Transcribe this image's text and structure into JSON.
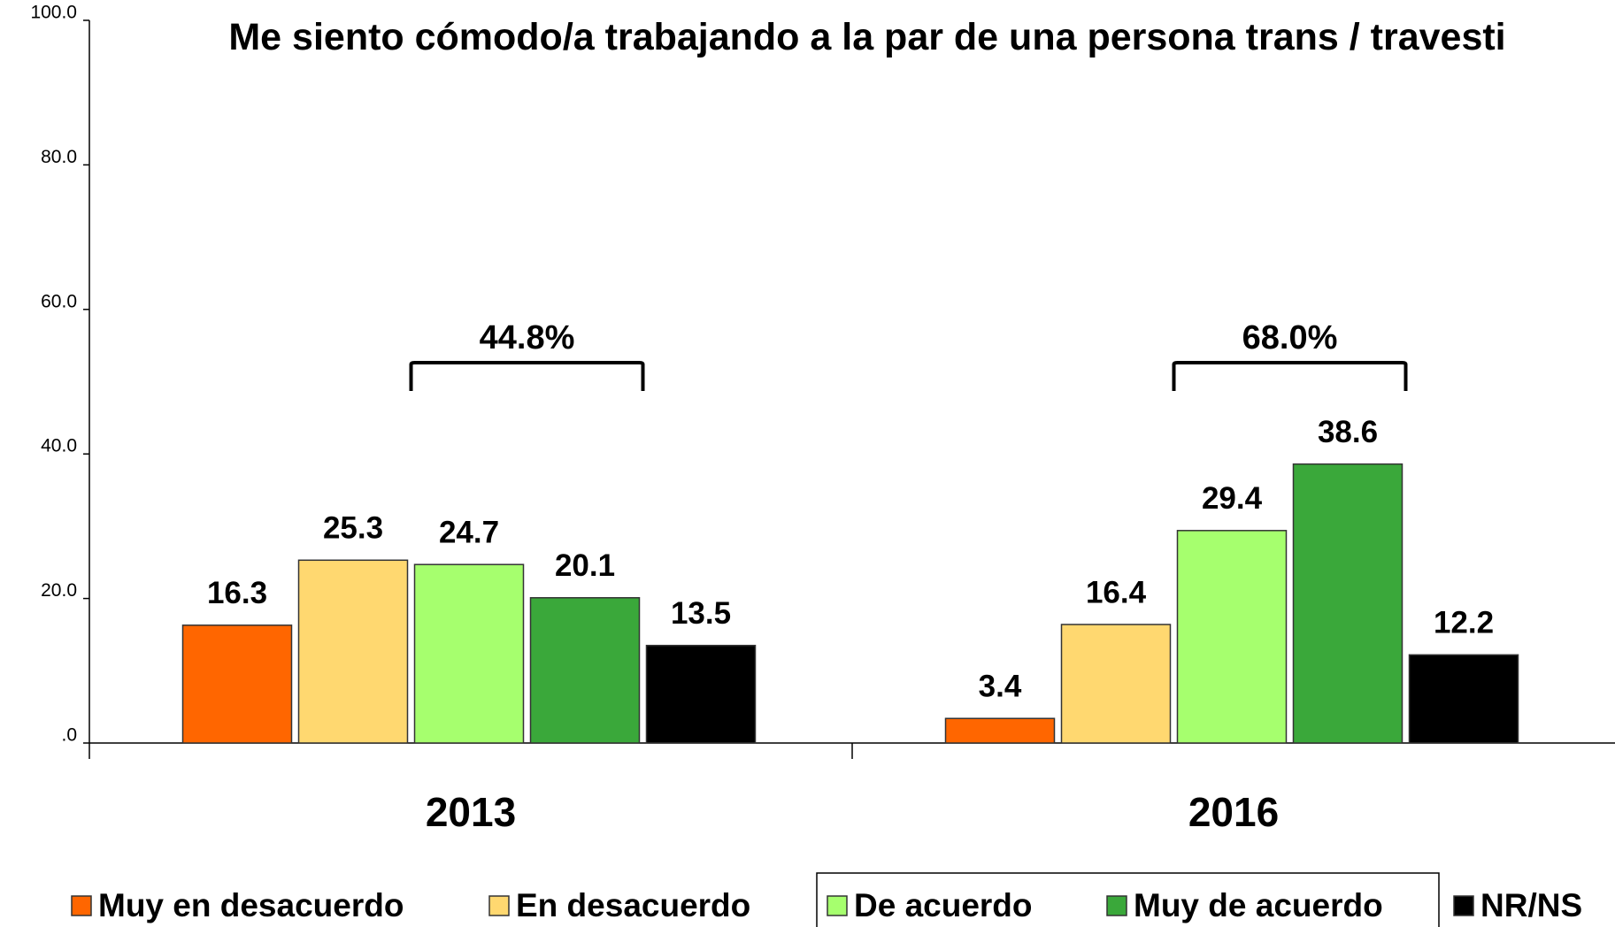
{
  "chart_data": {
    "type": "bar",
    "title": "Me siento cómodo/a trabajando a la par de una persona  trans / travesti",
    "categories": [
      "2013",
      "2016"
    ],
    "series": [
      {
        "name": "Muy en desacuerdo",
        "color": "#ff6600",
        "values": [
          16.3,
          3.4
        ]
      },
      {
        "name": "En desacuerdo",
        "color": "#ffd870",
        "values": [
          25.3,
          16.4
        ]
      },
      {
        "name": "De acuerdo",
        "color": "#a6ff6e",
        "values": [
          24.7,
          29.4
        ]
      },
      {
        "name": "Muy de acuerdo",
        "color": "#3aa83a",
        "values": [
          20.1,
          38.6
        ]
      },
      {
        "name": "NR/NS",
        "color": "#000000",
        "values": [
          13.5,
          12.2
        ]
      }
    ],
    "annotations": [
      "44.8%",
      "68.0%"
    ],
    "ylim": [
      0,
      100
    ],
    "yticks": [
      {
        "value": 0,
        "label": ".0"
      },
      {
        "value": 20,
        "label": "20.0"
      },
      {
        "value": 40,
        "label": "40.0"
      },
      {
        "value": 60,
        "label": "60.0"
      },
      {
        "value": 80,
        "label": "80.0"
      },
      {
        "value": 100,
        "label": "100.0"
      }
    ],
    "grid": false
  }
}
